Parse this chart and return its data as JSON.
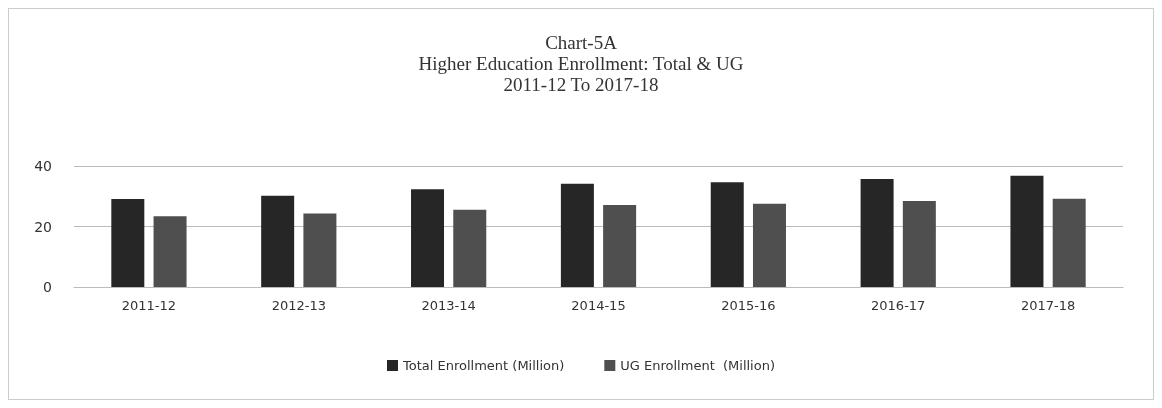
{
  "chart_data": {
    "type": "bar",
    "title": "Chart-5A\nHigher Education Enrollment: Total & UG\n2011-12 To 2017-18",
    "categories": [
      "2011-12",
      "2012-13",
      "2013-14",
      "2014-15",
      "2015-16",
      "2016-17",
      "2017-18"
    ],
    "series": [
      {
        "name": "Total Enrollment (Million)",
        "color": "#262626",
        "values": [
          29.1,
          30.2,
          32.3,
          34.1,
          34.6,
          35.7,
          36.8
        ]
      },
      {
        "name": "UG Enrollment  (Million)",
        "color": "#4f4f4f",
        "values": [
          23.4,
          24.3,
          25.5,
          27.1,
          27.5,
          28.4,
          29.2
        ]
      }
    ],
    "ylim": [
      0,
      40
    ],
    "yticks": [
      0,
      20,
      40
    ],
    "grid": "y",
    "legend": "bottom"
  }
}
